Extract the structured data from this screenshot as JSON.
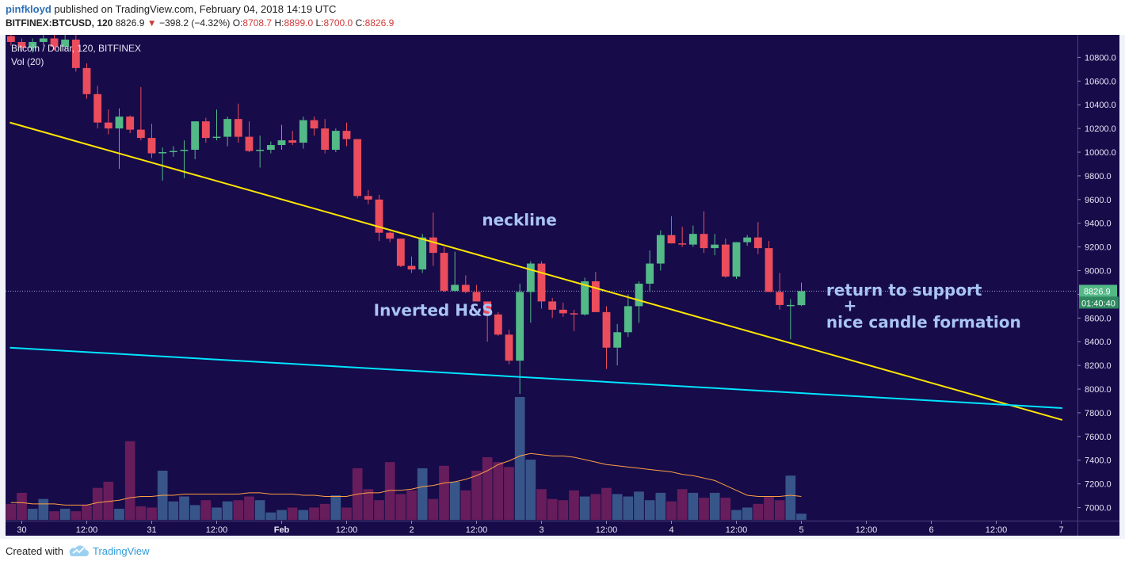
{
  "header": {
    "author": "pinfkloyd",
    "published_text": "published on TradingView.com, February 04, 2018 14:19 UTC",
    "symbol": "BITFINEX:BTCUSD, 120",
    "last_price": "8826.9",
    "change": "−398.2 (−4.32%)",
    "o_label": "O:",
    "o_value": "8708.7",
    "h_label": "H:",
    "h_value": "8899.0",
    "l_label": "L:",
    "l_value": "8700.0",
    "c_label": "C:",
    "c_value": "8826.9"
  },
  "legend": {
    "series_title": "Bitcoin / Dollar, 120, BITFINEX",
    "volume_title": "Vol (20)"
  },
  "footer": {
    "created_with": "Created with",
    "brand": "TradingView"
  },
  "colors": {
    "background": "#170b4a",
    "up_candle": "#53b987",
    "down_candle": "#eb4d5c",
    "neckline": "#ffe600",
    "support_line": "#00e5ff",
    "annotation_text": "#a9c4f5",
    "volume_ma": "#ff9f43"
  },
  "chart_data": {
    "type": "candlestick",
    "title": "Bitcoin / Dollar, 120, BITFINEX",
    "price_axis_ticks": [
      "10800.0",
      "10600.0",
      "10400.0",
      "10200.0",
      "10000.0",
      "9800.0",
      "9600.0",
      "9400.0",
      "9200.0",
      "9000.0",
      "8800.0",
      "8600.0",
      "8400.0",
      "8200.0",
      "8000.0",
      "7800.0",
      "7600.0",
      "7400.0",
      "7200.0",
      "7000.0"
    ],
    "time_axis_ticks": [
      {
        "label": "30",
        "index": 1.5
      },
      {
        "label": "12:00",
        "index": 7.5
      },
      {
        "label": "31",
        "index": 13.5
      },
      {
        "label": "12:00",
        "index": 19.5
      },
      {
        "label": "Feb",
        "index": 25.5
      },
      {
        "label": "12:00",
        "index": 31.5
      },
      {
        "label": "2",
        "index": 37.5
      },
      {
        "label": "12:00",
        "index": 43.5
      },
      {
        "label": "3",
        "index": 49.5
      },
      {
        "label": "12:00",
        "index": 55.5
      },
      {
        "label": "4",
        "index": 61.5
      },
      {
        "label": "12:00",
        "index": 67.5
      },
      {
        "label": "5",
        "index": 73.5
      },
      {
        "label": "12:00",
        "index": 79.5
      },
      {
        "label": "6",
        "index": 85.5
      },
      {
        "label": "12:00",
        "index": 91.5
      },
      {
        "label": "7",
        "index": 97.5
      }
    ],
    "bar_count": 99,
    "y_range": [
      6890,
      10990
    ],
    "volume_range": [
      0,
      1
    ],
    "last_price_label": "8826.9",
    "countdown_label": "01:40:40",
    "candles": [
      [
        10980,
        11010,
        10900,
        10930
      ],
      [
        10930,
        10960,
        10850,
        10880
      ],
      [
        10880,
        10960,
        10840,
        10930
      ],
      [
        10930,
        11000,
        10900,
        10960
      ],
      [
        10960,
        11000,
        10860,
        10890
      ],
      [
        10890,
        10990,
        10860,
        10950
      ],
      [
        10950,
        10990,
        10680,
        10710
      ],
      [
        10710,
        10750,
        10450,
        10490
      ],
      [
        10490,
        10560,
        10200,
        10250
      ],
      [
        10250,
        10360,
        10150,
        10200
      ],
      [
        10200,
        10370,
        9860,
        10300
      ],
      [
        10300,
        10310,
        10160,
        10190
      ],
      [
        10190,
        10550,
        10100,
        10120
      ],
      [
        10120,
        10240,
        9950,
        9990
      ],
      [
        9990,
        10040,
        9760,
        10000
      ],
      [
        10000,
        10050,
        9960,
        10010
      ],
      [
        10010,
        10100,
        9780,
        10020
      ],
      [
        10020,
        10260,
        9940,
        10260
      ],
      [
        10260,
        10290,
        10080,
        10120
      ],
      [
        10120,
        10360,
        10100,
        10130
      ],
      [
        10130,
        10300,
        10050,
        10280
      ],
      [
        10280,
        10410,
        10080,
        10130
      ],
      [
        10130,
        10260,
        10000,
        10010
      ],
      [
        10010,
        10140,
        9870,
        10020
      ],
      [
        10020,
        10090,
        9990,
        10060
      ],
      [
        10060,
        10230,
        10020,
        10100
      ],
      [
        10100,
        10180,
        10060,
        10080
      ],
      [
        10080,
        10300,
        10030,
        10270
      ],
      [
        10270,
        10300,
        10140,
        10200
      ],
      [
        10200,
        10280,
        9990,
        10020
      ],
      [
        10020,
        10200,
        10000,
        10180
      ],
      [
        10180,
        10250,
        10050,
        10110
      ],
      [
        10110,
        10110,
        9610,
        9630
      ],
      [
        9630,
        9680,
        9560,
        9600
      ],
      [
        9600,
        9640,
        9250,
        9320
      ],
      [
        9320,
        9330,
        9240,
        9270
      ],
      [
        9270,
        9270,
        9030,
        9040
      ],
      [
        9040,
        9120,
        8980,
        9010
      ],
      [
        9010,
        9310,
        8980,
        9280
      ],
      [
        9280,
        9490,
        9040,
        9150
      ],
      [
        9150,
        9200,
        8820,
        8830
      ],
      [
        8830,
        9160,
        8820,
        8880
      ],
      [
        8880,
        8960,
        8810,
        8820
      ],
      [
        8820,
        8880,
        8740,
        8740
      ],
      [
        8740,
        8740,
        8400,
        8630
      ],
      [
        8630,
        8650,
        8450,
        8460
      ],
      [
        8460,
        8500,
        8210,
        8240
      ],
      [
        8240,
        8890,
        7960,
        8820
      ],
      [
        8820,
        9080,
        8560,
        9060
      ],
      [
        9060,
        9080,
        8680,
        8740
      ],
      [
        8740,
        8770,
        8600,
        8670
      ],
      [
        8670,
        8730,
        8610,
        8640
      ],
      [
        8640,
        8670,
        8490,
        8630
      ],
      [
        8630,
        8940,
        8620,
        8910
      ],
      [
        8910,
        8990,
        8680,
        8650
      ],
      [
        8650,
        8700,
        8170,
        8350
      ],
      [
        8350,
        8550,
        8200,
        8480
      ],
      [
        8480,
        8800,
        8440,
        8700
      ],
      [
        8700,
        8910,
        8560,
        8890
      ],
      [
        8890,
        9170,
        8820,
        9060
      ],
      [
        9060,
        9340,
        9000,
        9300
      ],
      [
        9300,
        9460,
        9230,
        9230
      ],
      [
        9230,
        9370,
        9200,
        9220
      ],
      [
        9220,
        9380,
        9200,
        9310
      ],
      [
        9310,
        9500,
        9150,
        9190
      ],
      [
        9190,
        9310,
        9130,
        9220
      ],
      [
        9220,
        9270,
        8940,
        8950
      ],
      [
        8950,
        9240,
        8930,
        9240
      ],
      [
        9240,
        9300,
        9210,
        9280
      ],
      [
        9280,
        9410,
        9140,
        9190
      ],
      [
        9190,
        9250,
        8830,
        8820
      ],
      [
        8820,
        8980,
        8670,
        8710
      ],
      [
        8710,
        8760,
        8420,
        8710
      ],
      [
        8708.7,
        8899,
        8700,
        8826.9
      ]
    ],
    "volumes": [
      0.13,
      0.22,
      0.09,
      0.17,
      0.07,
      0.09,
      0.07,
      0.12,
      0.26,
      0.31,
      0.09,
      0.64,
      0.11,
      0.1,
      0.4,
      0.15,
      0.19,
      0.12,
      0.16,
      0.1,
      0.15,
      0.16,
      0.19,
      0.16,
      0.06,
      0.08,
      0.1,
      0.08,
      0.1,
      0.13,
      0.2,
      0.1,
      0.42,
      0.25,
      0.16,
      0.47,
      0.21,
      0.24,
      0.42,
      0.17,
      0.44,
      0.31,
      0.24,
      0.4,
      0.51,
      0.47,
      0.43,
      1.0,
      0.49,
      0.25,
      0.17,
      0.16,
      0.24,
      0.19,
      0.21,
      0.26,
      0.21,
      0.19,
      0.23,
      0.16,
      0.22,
      0.15,
      0.25,
      0.22,
      0.18,
      0.22,
      0.18,
      0.08,
      0.1,
      0.13,
      0.19,
      0.16,
      0.36,
      0.05
    ],
    "volume_ma": [
      0.14,
      0.14,
      0.13,
      0.13,
      0.13,
      0.12,
      0.12,
      0.12,
      0.14,
      0.15,
      0.16,
      0.18,
      0.19,
      0.19,
      0.2,
      0.2,
      0.21,
      0.21,
      0.21,
      0.21,
      0.21,
      0.21,
      0.22,
      0.22,
      0.21,
      0.21,
      0.21,
      0.2,
      0.2,
      0.19,
      0.19,
      0.19,
      0.21,
      0.22,
      0.22,
      0.24,
      0.24,
      0.25,
      0.27,
      0.28,
      0.3,
      0.31,
      0.33,
      0.36,
      0.4,
      0.45,
      0.48,
      0.52,
      0.54,
      0.53,
      0.52,
      0.52,
      0.51,
      0.49,
      0.47,
      0.45,
      0.44,
      0.43,
      0.42,
      0.41,
      0.4,
      0.39,
      0.37,
      0.36,
      0.34,
      0.32,
      0.28,
      0.24,
      0.2,
      0.19,
      0.19,
      0.19,
      0.2,
      0.19
    ],
    "trendlines": [
      {
        "name": "neckline",
        "color": "#ffe600",
        "points": [
          [
            -0.1,
            10250
          ],
          [
            97.1,
            7740
          ]
        ]
      },
      {
        "name": "support",
        "color": "#00e5ff",
        "points": [
          [
            -0.1,
            8350
          ],
          [
            97.1,
            7840
          ]
        ]
      }
    ],
    "annotations": [
      {
        "text": "neckline",
        "x_index": 44,
        "price": 9380
      },
      {
        "text": "Inverted H&S",
        "x_index": 34,
        "price": 8620
      },
      {
        "text": "return to support",
        "x_index": 75.8,
        "price": 8790
      },
      {
        "text": "+",
        "x_index": 75.8,
        "price": 8660
      },
      {
        "text": "nice candle formation",
        "x_index": 75.8,
        "price": 8520
      }
    ]
  }
}
